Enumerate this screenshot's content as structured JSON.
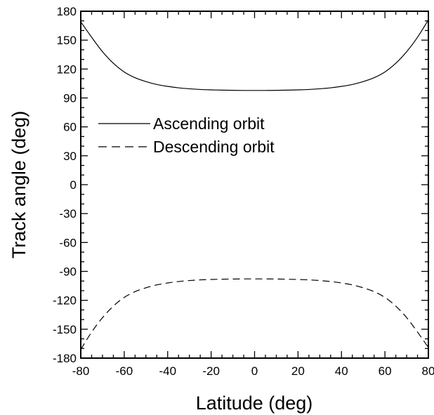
{
  "chart_data": {
    "type": "line",
    "title": "",
    "xlabel": "Latitude (deg)",
    "ylabel": "Track angle (deg)",
    "xlim": [
      -80,
      80
    ],
    "ylim": [
      -180,
      180
    ],
    "x_ticks": [
      -80,
      -60,
      -40,
      -20,
      0,
      20,
      40,
      60,
      80
    ],
    "y_ticks": [
      180,
      150,
      120,
      90,
      60,
      30,
      0,
      -30,
      -60,
      -90,
      -120,
      -150,
      -180
    ],
    "x_tick_labels": [
      "-80",
      "-60",
      "-40",
      "-20",
      "0",
      "20",
      "40",
      "60",
      "80"
    ],
    "y_tick_labels": [
      "180",
      "150",
      "120",
      "90",
      "60",
      "30",
      "0",
      "-30",
      "-60",
      "-90",
      "-120",
      "-150",
      "-180"
    ],
    "grid": false,
    "legend_position": "upper-left",
    "x": [
      -80,
      -75,
      -70,
      -65,
      -60,
      -55,
      -50,
      -45,
      -40,
      -35,
      -30,
      -25,
      -20,
      -15,
      -10,
      -5,
      0,
      5,
      10,
      15,
      20,
      25,
      30,
      35,
      40,
      45,
      50,
      55,
      60,
      65,
      70,
      75,
      80
    ],
    "series": [
      {
        "name": "Ascending orbit",
        "style": "solid",
        "color": "#000000",
        "values": [
          169,
          153,
          138,
          126,
          117,
          111,
          107,
          104,
          102,
          100.5,
          99.5,
          98.8,
          98.4,
          98.1,
          97.9,
          97.8,
          97.8,
          97.8,
          97.9,
          98.1,
          98.4,
          98.8,
          99.5,
          100.5,
          102,
          104,
          107,
          111,
          117,
          126,
          138,
          153,
          171
        ]
      },
      {
        "name": "Descending orbit",
        "style": "dashed",
        "color": "#000000",
        "values": [
          -171,
          -153,
          -138,
          -126,
          -117,
          -111,
          -107,
          -104,
          -102,
          -100.5,
          -99.5,
          -98.8,
          -98.4,
          -98.1,
          -97.9,
          -97.8,
          -97.8,
          -97.8,
          -97.9,
          -98.1,
          -98.4,
          -98.8,
          -99.5,
          -100.5,
          -102,
          -104,
          -107,
          -111,
          -117,
          -126,
          -138,
          -153,
          -169
        ]
      }
    ]
  }
}
